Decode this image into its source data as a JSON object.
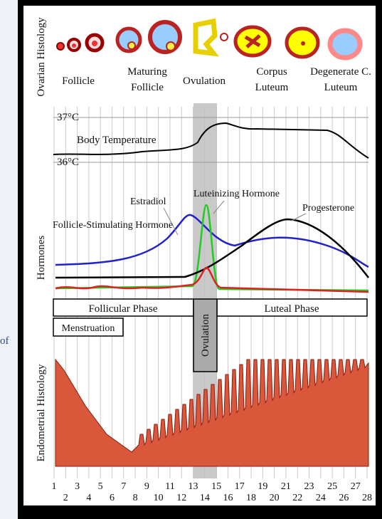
{
  "side_text": "of",
  "ovarian": {
    "label": "Ovarian Histology",
    "stages": [
      "Follicle",
      "Maturing Follicle",
      "Ovulation",
      "Corpus Luteum",
      "Degenerate C. Luteum"
    ]
  },
  "temperature": {
    "high": "37°C",
    "low": "36°C",
    "label": "Body Temperature"
  },
  "hormones": {
    "label": "Hormones",
    "estradiol": "Estradiol",
    "lh": "Luteinizing Hormone",
    "progesterone": "Progesterone",
    "fsh": "Follicle-Stimulating Hormone"
  },
  "phases": {
    "follicular": "Follicular Phase",
    "luteal": "Luteal Phase",
    "menstruation": "Menstruation",
    "ovulation": "Ovulation"
  },
  "endometrium": {
    "label": "Endometrial Histology"
  },
  "days": [
    "1",
    "2",
    "3",
    "4",
    "5",
    "6",
    "7",
    "8",
    "9",
    "10",
    "11",
    "12",
    "13",
    "14",
    "15",
    "16",
    "17",
    "18",
    "19",
    "20",
    "21",
    "22",
    "23",
    "24",
    "25",
    "26",
    "27",
    "28"
  ]
}
